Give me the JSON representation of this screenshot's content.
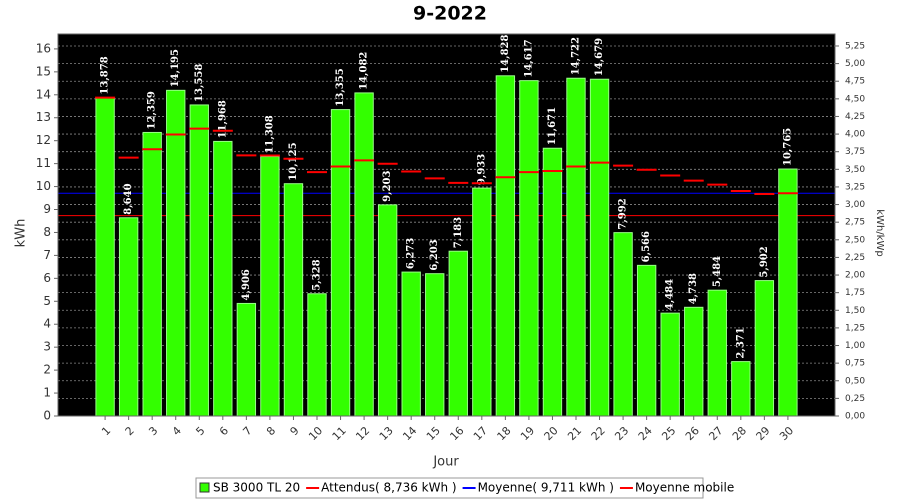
{
  "chart_data": {
    "type": "bar",
    "title": "9-2022",
    "x_label": "Jour",
    "y_label": "kWh",
    "y2_label": "kWh/kWp",
    "categories": [
      "1",
      "2",
      "3",
      "4",
      "5",
      "6",
      "7",
      "8",
      "9",
      "10",
      "11",
      "12",
      "13",
      "14",
      "15",
      "16",
      "17",
      "18",
      "19",
      "20",
      "21",
      "22",
      "23",
      "24",
      "25",
      "26",
      "27",
      "28",
      "29",
      "30"
    ],
    "series": [
      {
        "name": "SB 3000 TL 20",
        "color": "#33ff00",
        "values": [
          13.878,
          8.64,
          12.359,
          14.195,
          13.558,
          11.968,
          4.906,
          11.308,
          10.125,
          5.328,
          13.355,
          14.082,
          9.203,
          6.273,
          6.203,
          7.183,
          9.933,
          14.828,
          14.617,
          11.671,
          14.722,
          14.679,
          7.992,
          6.566,
          4.484,
          4.738,
          5.484,
          2.371,
          5.902,
          10.765
        ],
        "value_labels": [
          "13,878",
          "8,640",
          "12,359",
          "14,195",
          "13,558",
          "11,968",
          "4,906",
          "11,308",
          "10,125",
          "5,328",
          "13,355",
          "14,082",
          "9,203",
          "6,273",
          "6,203",
          "7,183",
          "9,933",
          "14,828",
          "14,617",
          "11,671",
          "14,722",
          "14,679",
          "7,992",
          "6,566",
          "4,484",
          "4,738",
          "5,484",
          "2,371",
          "5,902",
          "10,765"
        ]
      },
      {
        "name": "Moyenne mobile",
        "color": "#ff0000",
        "values": [
          13.878,
          11.259,
          11.626,
          12.268,
          12.526,
          12.433,
          11.358,
          11.352,
          11.215,
          10.627,
          10.875,
          11.142,
          10.993,
          10.656,
          10.359,
          10.16,
          10.147,
          10.407,
          10.629,
          10.681,
          10.873,
          11.046,
          10.913,
          10.732,
          10.482,
          10.261,
          10.084,
          9.809,
          9.674,
          9.711
        ]
      }
    ],
    "reference_lines": [
      {
        "name": "Attendus( 8,736 kWh )",
        "color": "#ff0000",
        "value": 8.736
      },
      {
        "name": "Moyenne( 9,711 kWh )",
        "color": "#0000ff",
        "value": 9.711
      }
    ],
    "ylim": [
      0,
      16.65
    ],
    "yticks": [
      0,
      1,
      2,
      3,
      4,
      5,
      6,
      7,
      8,
      9,
      10,
      11,
      12,
      13,
      14,
      15,
      16
    ],
    "y2lim": [
      0,
      5.42
    ],
    "y2ticks": [
      {
        "value": 0,
        "label": "0,00"
      },
      {
        "value": 0.25,
        "label": "0,25"
      },
      {
        "value": 0.5,
        "label": "0,50"
      },
      {
        "value": 0.75,
        "label": "0,75"
      },
      {
        "value": 1,
        "label": "1,00"
      },
      {
        "value": 1.25,
        "label": "1,25"
      },
      {
        "value": 1.5,
        "label": "1,50"
      },
      {
        "value": 1.75,
        "label": "1,75"
      },
      {
        "value": 2,
        "label": "2,00"
      },
      {
        "value": 2.25,
        "label": "2,25"
      },
      {
        "value": 2.5,
        "label": "2,50"
      },
      {
        "value": 2.75,
        "label": "2,75"
      },
      {
        "value": 3,
        "label": "3,00"
      },
      {
        "value": 3.25,
        "label": "3,25"
      },
      {
        "value": 3.5,
        "label": "3,50"
      },
      {
        "value": 3.75,
        "label": "3,75"
      },
      {
        "value": 4,
        "label": "4,00"
      },
      {
        "value": 4.25,
        "label": "4,25"
      },
      {
        "value": 4.5,
        "label": "4,50"
      },
      {
        "value": 4.75,
        "label": "4,75"
      },
      {
        "value": 5,
        "label": "5,00"
      },
      {
        "value": 5.25,
        "label": "5,25"
      }
    ],
    "grid": true,
    "legend": "bottom"
  }
}
